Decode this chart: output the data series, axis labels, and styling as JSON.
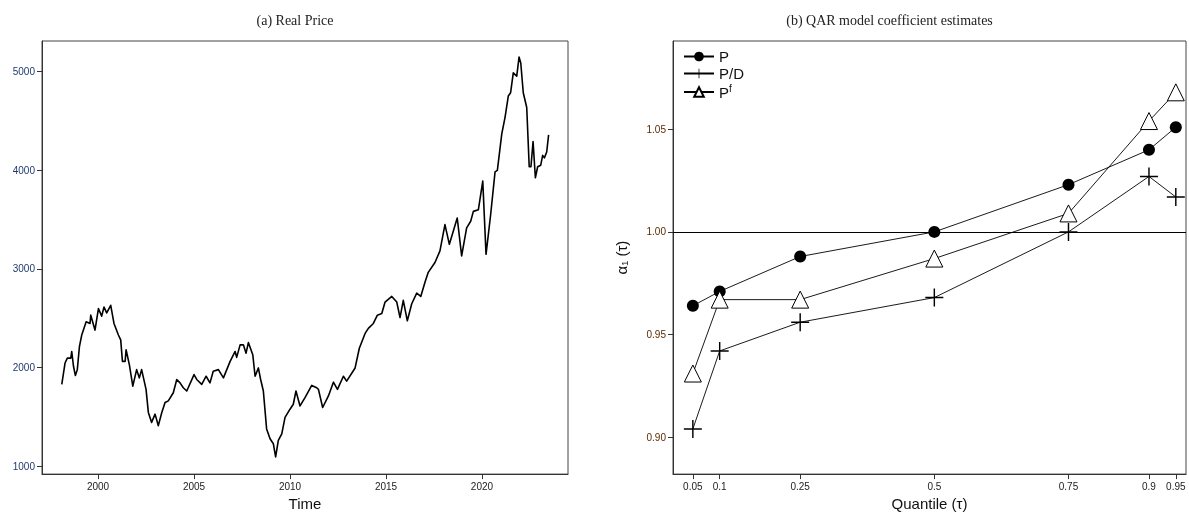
{
  "chart_data": [
    {
      "type": "line",
      "title": "(a) Real Price",
      "xlabel": "Time",
      "xlim": [
        1997.08,
        2024.48
      ],
      "xticks": [
        2000,
        2005,
        2010,
        2015,
        2020
      ],
      "ylim": [
        920,
        5310
      ],
      "yticks": [
        1000,
        2000,
        3000,
        4000,
        5000
      ],
      "grid": false,
      "legend": false,
      "marker": "none",
      "line_style": "solid",
      "series": [
        {
          "color": "#000000",
          "x": [
            1998.11,
            1998.28,
            1998.4,
            1998.58,
            1998.63,
            1998.72,
            1998.82,
            1998.92,
            1999.03,
            1999.15,
            1999.38,
            1999.58,
            1999.62,
            1999.84,
            2000.02,
            2000.19,
            2000.31,
            2000.45,
            2000.66,
            2000.83,
            2001.06,
            2001.18,
            2001.27,
            2001.41,
            2001.46,
            2001.63,
            2001.81,
            2002.01,
            2002.15,
            2002.27,
            2002.5,
            2002.62,
            2002.79,
            2002.97,
            2003.14,
            2003.32,
            2003.49,
            2003.66,
            2003.92,
            2004.1,
            2004.27,
            2004.44,
            2004.62,
            2005.0,
            2005.14,
            2005.4,
            2005.63,
            2005.83,
            2006.0,
            2006.27,
            2006.53,
            2006.88,
            2007.14,
            2007.22,
            2007.4,
            2007.57,
            2007.71,
            2007.83,
            2008.06,
            2008.18,
            2008.35,
            2008.47,
            2008.61,
            2008.78,
            2008.96,
            2009.13,
            2009.25,
            2009.39,
            2009.57,
            2009.74,
            2010.0,
            2010.17,
            2010.31,
            2010.52,
            2010.78,
            2011.13,
            2011.39,
            2011.48,
            2011.7,
            2012.0,
            2012.26,
            2012.47,
            2012.78,
            2012.95,
            2013.39,
            2013.61,
            2013.91,
            2014.08,
            2014.34,
            2014.55,
            2014.78,
            2014.95,
            2015.3,
            2015.56,
            2015.73,
            2015.9,
            2016.11,
            2016.34,
            2016.6,
            2016.81,
            2017.03,
            2017.2,
            2017.55,
            2017.81,
            2018.07,
            2018.3,
            2018.71,
            2018.94,
            2019.2,
            2019.41,
            2019.55,
            2019.81,
            2020.04,
            2020.21,
            2020.45,
            2020.68,
            2020.8,
            2021.03,
            2021.2,
            2021.37,
            2021.49,
            2021.63,
            2021.81,
            2021.93,
            2022.02,
            2022.15,
            2022.33,
            2022.46,
            2022.55,
            2022.66,
            2022.78,
            2022.9,
            2023.06,
            2023.16,
            2023.25,
            2023.37,
            2023.47
          ],
          "values": [
            1829,
            2046,
            2096,
            2096,
            2163,
            2013,
            1919,
            1979,
            2213,
            2330,
            2464,
            2447,
            2531,
            2380,
            2597,
            2521,
            2614,
            2554,
            2631,
            2447,
            2330,
            2280,
            2063,
            2063,
            2180,
            2030,
            1812,
            1979,
            1895,
            1979,
            1779,
            1545,
            1444,
            1528,
            1411,
            1545,
            1645,
            1662,
            1745,
            1879,
            1845,
            1795,
            1762,
            1929,
            1879,
            1829,
            1912,
            1845,
            1962,
            1979,
            1895,
            2063,
            2163,
            2103,
            2230,
            2230,
            2146,
            2253,
            2130,
            1912,
            1996,
            1879,
            1762,
            1378,
            1278,
            1228,
            1094,
            1261,
            1328,
            1495,
            1578,
            1628,
            1762,
            1611,
            1695,
            1819,
            1795,
            1779,
            1595,
            1712,
            1852,
            1779,
            1912,
            1862,
            1996,
            2196,
            2346,
            2397,
            2447,
            2531,
            2547,
            2664,
            2721,
            2664,
            2507,
            2681,
            2474,
            2647,
            2754,
            2721,
            2865,
            2965,
            3065,
            3182,
            3449,
            3249,
            3516,
            3132,
            3416,
            3483,
            3583,
            3599,
            3890,
            3148,
            3549,
            3984,
            3999,
            4368,
            4536,
            4752,
            4786,
            4987,
            4953,
            5147,
            5087,
            4786,
            4636,
            4035,
            4035,
            4291,
            3924,
            4035,
            4051,
            4151,
            4125,
            4185,
            4358
          ]
        }
      ]
    },
    {
      "type": "line",
      "title": "(b) QAR model coefficient estimates",
      "xlabel": "Quantile (τ)",
      "ylabel": "α₁ (τ)",
      "xlim": [
        0.013,
        0.969
      ],
      "xticks": [
        0.05,
        0.1,
        0.25,
        0.5,
        0.75,
        0.9,
        0.95
      ],
      "ylim": [
        0.882,
        1.093
      ],
      "yticks": [
        {
          "value": 0.9,
          "label": "0.90"
        },
        0.95,
        {
          "value": 1.0,
          "label": "1.00"
        },
        1.05
      ],
      "grid": false,
      "legend": "top left",
      "line_style": "solid",
      "ref_lines": [
        {
          "axis": "y",
          "value": 1.0,
          "color": "#000000"
        }
      ],
      "series": [
        {
          "name": "P",
          "color": "#000000",
          "marker": "circle",
          "x": [
            0.05,
            0.1,
            0.25,
            0.5,
            0.75,
            0.9,
            0.95
          ],
          "values": [
            0.964,
            0.971,
            0.988,
            1.0,
            1.023,
            1.04,
            1.051
          ]
        },
        {
          "name": "P/D",
          "color": "#000000",
          "marker": "cross",
          "x": [
            0.05,
            0.1,
            0.25,
            0.5,
            0.75,
            0.9,
            0.95
          ],
          "values": [
            0.904,
            0.942,
            0.956,
            0.968,
            1.0,
            1.027,
            1.017
          ]
        },
        {
          "name": "P$^{f}$",
          "color": "#000000",
          "marker": "triangle",
          "x": [
            0.05,
            0.1,
            0.25,
            0.5,
            0.75,
            0.9,
            0.95
          ],
          "values": [
            0.931,
            0.967,
            0.967,
            0.987,
            1.009,
            1.054,
            1.068
          ]
        }
      ]
    }
  ]
}
